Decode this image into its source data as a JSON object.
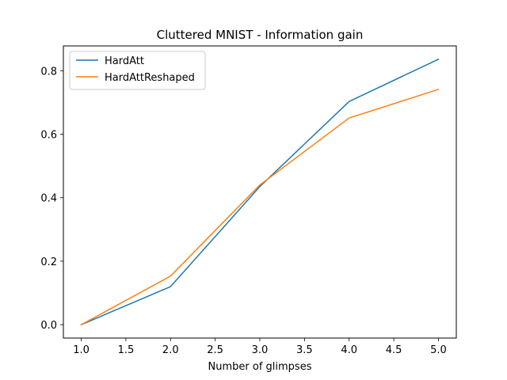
{
  "chart_data": {
    "type": "line",
    "title": "Cluttered MNIST - Information gain",
    "xlabel": "Number of glimpses",
    "ylabel": "",
    "xlim": [
      0.8,
      5.2
    ],
    "ylim": [
      -0.042,
      0.878
    ],
    "xticks": [
      1.0,
      1.5,
      2.0,
      2.5,
      3.0,
      3.5,
      4.0,
      4.5,
      5.0
    ],
    "xtick_labels": [
      "1.0",
      "1.5",
      "2.0",
      "2.5",
      "3.0",
      "3.5",
      "4.0",
      "4.5",
      "5.0"
    ],
    "yticks": [
      0.0,
      0.2,
      0.4,
      0.6,
      0.8
    ],
    "ytick_labels": [
      "0.0",
      "0.2",
      "0.4",
      "0.6",
      "0.8"
    ],
    "grid": false,
    "legend_position": "upper left",
    "x": [
      1,
      2,
      3,
      4,
      5
    ],
    "series": [
      {
        "name": "HardAtt",
        "color": "#1f77b4",
        "values": [
          0.0,
          0.12,
          0.435,
          0.703,
          0.836
        ]
      },
      {
        "name": "HardAttReshaped",
        "color": "#ff7f0e",
        "values": [
          0.0,
          0.153,
          0.44,
          0.651,
          0.741
        ]
      }
    ]
  }
}
